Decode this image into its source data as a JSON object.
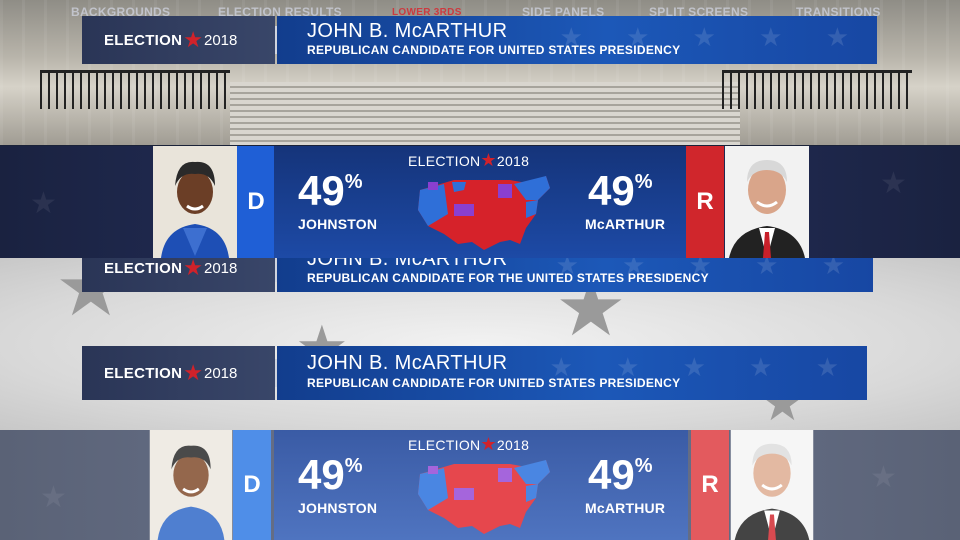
{
  "tabs": [
    {
      "label": "BACKGROUNDS",
      "active": false
    },
    {
      "label": "ELECTION RESULTS",
      "active": false
    },
    {
      "label": "LOWER 3RDS",
      "active": true
    },
    {
      "label": "SIDE PANELS",
      "active": false
    },
    {
      "label": "SPLIT SCREENS",
      "active": false
    },
    {
      "label": "TRANSITIONS",
      "active": false
    }
  ],
  "brand": {
    "word": "ELECTION",
    "year": "2018",
    "star": "★"
  },
  "lower_thirds": [
    {
      "name": "JOHN B. McARTHUR",
      "title": "REPUBLICAN CANDIDATE FOR UNITED STATES PRESIDENCY"
    },
    {
      "name": "JOHN B. McARTHUR",
      "title": "REPUBLICAN CANDIDATE FOR THE UNITED STATES PRESIDENCY"
    },
    {
      "name": "JOHN B. McARTHUR",
      "title": "REPUBLICAN CANDIDATE FOR UNITED STATES PRESIDENCY"
    }
  ],
  "results": {
    "dem": {
      "party": "D",
      "percent": "49",
      "unit": "%",
      "name": "JOHNSTON"
    },
    "rep": {
      "party": "R",
      "percent": "49",
      "unit": "%",
      "name": "McARTHUR"
    }
  },
  "colors": {
    "dem": "#1f5fd6",
    "rep": "#d0262c",
    "purple": "#8a3fd0",
    "navy": "#1d4aa6"
  }
}
